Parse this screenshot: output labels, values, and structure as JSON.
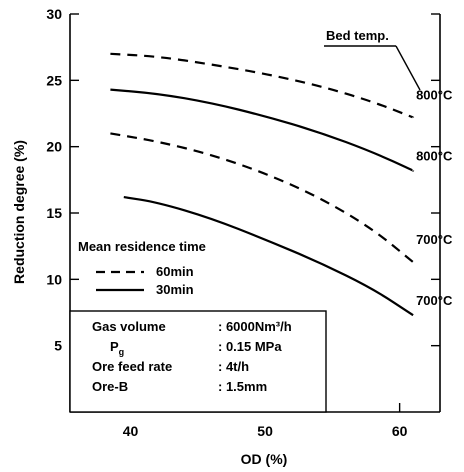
{
  "chart_data": {
    "type": "line",
    "xlabel": "OD  (%)",
    "ylabel": "Reduction degree  (%)",
    "xlim": [
      35.5,
      63
    ],
    "ylim": [
      0,
      30
    ],
    "x_ticks": [
      40,
      50,
      60
    ],
    "y_ticks": [
      5,
      10,
      15,
      20,
      25,
      30
    ],
    "bed_temp_label": "Bed temp.",
    "series": [
      {
        "name": "800°C",
        "residence": "60min",
        "dash": "dashed",
        "x": [
          38.5,
          42,
          46,
          50,
          54,
          58,
          61
        ],
        "y": [
          27.0,
          26.8,
          26.2,
          25.5,
          24.6,
          23.4,
          22.2
        ]
      },
      {
        "name": "800°C",
        "residence": "30min",
        "dash": "solid",
        "x": [
          38.5,
          42,
          46,
          50,
          54,
          58,
          61
        ],
        "y": [
          24.3,
          24.0,
          23.3,
          22.3,
          21.1,
          19.6,
          18.2
        ]
      },
      {
        "name": "700°C",
        "residence": "60min",
        "dash": "dashed",
        "x": [
          38.5,
          42,
          46,
          50,
          54,
          58,
          61
        ],
        "y": [
          21.0,
          20.4,
          19.4,
          18.0,
          16.2,
          13.8,
          11.3
        ]
      },
      {
        "name": "700°C",
        "residence": "30min",
        "dash": "solid",
        "x": [
          39.5,
          42,
          46,
          50,
          54,
          58,
          61
        ],
        "y": [
          16.2,
          15.8,
          14.6,
          13.0,
          11.3,
          9.3,
          7.3
        ]
      }
    ],
    "legend": {
      "title": "Mean residence time",
      "items": [
        {
          "label": "60min",
          "dash": "dashed"
        },
        {
          "label": "30min",
          "dash": "solid"
        }
      ],
      "placement": "lower-left"
    },
    "conditions": [
      {
        "label": "Gas volume",
        "value": ": 6000Nm³/h"
      },
      {
        "label": "P",
        "sub": "g",
        "value": ": 0.15 MPa"
      },
      {
        "label": "Ore feed rate",
        "value": ": 4t/h"
      },
      {
        "label": "Ore-B",
        "value": ": 1.5mm"
      }
    ]
  }
}
